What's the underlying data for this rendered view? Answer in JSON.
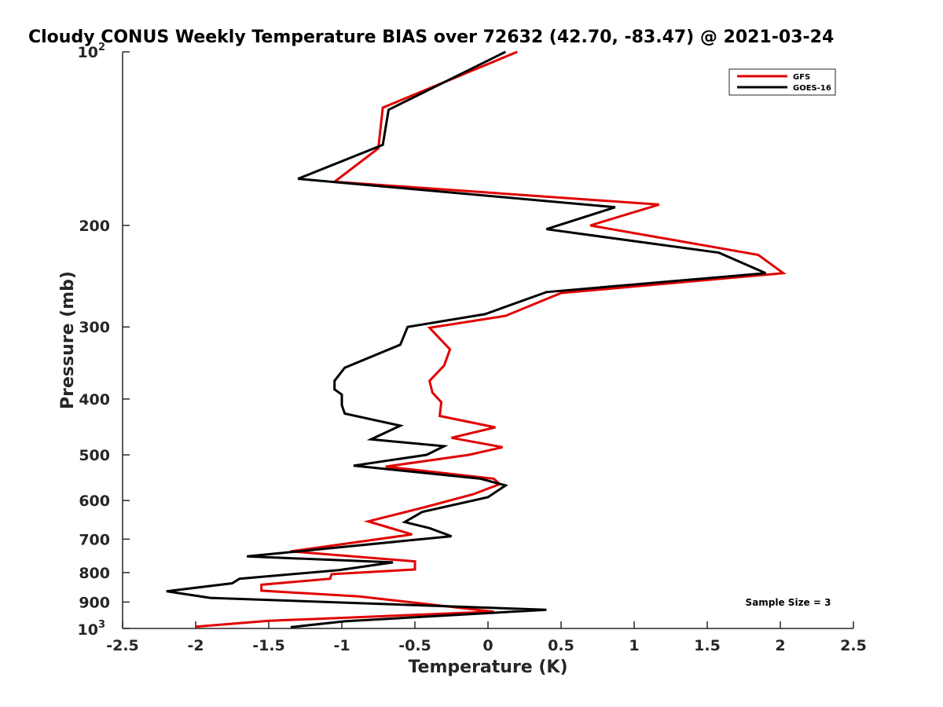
{
  "chart_data": {
    "type": "line",
    "title": "Cloudy CONUS Weekly Temperature BIAS over 72632 (42.70, -83.47) @ 2021-03-24",
    "xlabel": "Temperature (K)",
    "ylabel": "Pressure (mb)",
    "xlim": [
      -2.5,
      2.5
    ],
    "ylim": [
      100,
      1000
    ],
    "yscale": "log",
    "yreversed": true,
    "x_ticks": [
      -2.5,
      -2,
      -1.5,
      -1,
      -0.5,
      0,
      0.5,
      1,
      1.5,
      2,
      2.5
    ],
    "x_tick_labels": [
      "-2.5",
      "-2",
      "-1.5",
      "-1",
      "-0.5",
      "0",
      "0.5",
      "1",
      "1.5",
      "2",
      "2.5"
    ],
    "y_ticks": [
      200,
      300,
      400,
      500,
      600,
      700,
      800,
      900
    ],
    "y_tick_labels": [
      "200",
      "300",
      "400",
      "500",
      "600",
      "700",
      "800",
      "900"
    ],
    "y_end_labels": {
      "top_base": "10",
      "top_exp": "2",
      "bottom_base": "10",
      "bottom_exp": "3"
    },
    "grid": false,
    "legend": "top-right",
    "annotation": "Sample Size = 3",
    "series": [
      {
        "name": "GFS",
        "color": "#e00000",
        "points": [
          [
            0.2,
            100
          ],
          [
            -0.72,
            125
          ],
          [
            -0.75,
            147
          ],
          [
            -1.05,
            168
          ],
          [
            1.17,
            184
          ],
          [
            0.7,
            200
          ],
          [
            1.85,
            225
          ],
          [
            2.02,
            242
          ],
          [
            0.5,
            262
          ],
          [
            0.12,
            287
          ],
          [
            -0.4,
            301
          ],
          [
            -0.26,
            328
          ],
          [
            -0.3,
            350
          ],
          [
            -0.4,
            372
          ],
          [
            -0.38,
            390
          ],
          [
            -0.32,
            405
          ],
          [
            -0.33,
            428
          ],
          [
            0.05,
            448
          ],
          [
            -0.25,
            467
          ],
          [
            0.1,
            485
          ],
          [
            -0.13,
            500
          ],
          [
            -0.7,
            524
          ],
          [
            0.04,
            550
          ],
          [
            0.08,
            562
          ],
          [
            -0.1,
            585
          ],
          [
            -0.42,
            615
          ],
          [
            -0.82,
            652
          ],
          [
            -0.52,
            687
          ],
          [
            -1.35,
            735
          ],
          [
            -0.5,
            765
          ],
          [
            -0.5,
            790
          ],
          [
            -1.07,
            805
          ],
          [
            -1.08,
            820
          ],
          [
            -1.55,
            840
          ],
          [
            -1.55,
            860
          ],
          [
            -0.88,
            880
          ],
          [
            0.04,
            935
          ],
          [
            -1.5,
            970
          ],
          [
            -2.0,
            993
          ]
        ]
      },
      {
        "name": "GOES-16",
        "color": "#000000",
        "points": [
          [
            0.12,
            100
          ],
          [
            -0.68,
            126
          ],
          [
            -0.72,
            145
          ],
          [
            -1.3,
            166
          ],
          [
            0.87,
            186
          ],
          [
            0.4,
            203
          ],
          [
            1.58,
            223
          ],
          [
            1.9,
            242
          ],
          [
            0.4,
            261
          ],
          [
            -0.02,
            285
          ],
          [
            -0.55,
            300
          ],
          [
            -0.6,
            322
          ],
          [
            -0.98,
            353
          ],
          [
            -1.05,
            372
          ],
          [
            -1.05,
            385
          ],
          [
            -1.0,
            393
          ],
          [
            -1.0,
            410
          ],
          [
            -0.98,
            424
          ],
          [
            -0.6,
            445
          ],
          [
            -0.8,
            470
          ],
          [
            -0.3,
            483
          ],
          [
            -0.42,
            500
          ],
          [
            -0.92,
            522
          ],
          [
            -0.05,
            550
          ],
          [
            0.12,
            565
          ],
          [
            0.0,
            592
          ],
          [
            -0.45,
            628
          ],
          [
            -0.57,
            654
          ],
          [
            -0.4,
            670
          ],
          [
            -0.25,
            692
          ],
          [
            -1.65,
            750
          ],
          [
            -0.65,
            768
          ],
          [
            -1.02,
            792
          ],
          [
            -1.7,
            820
          ],
          [
            -1.75,
            835
          ],
          [
            -2.2,
            862
          ],
          [
            -1.9,
            885
          ],
          [
            0.4,
            928
          ],
          [
            -0.98,
            972
          ],
          [
            -1.35,
            995
          ]
        ]
      }
    ]
  }
}
